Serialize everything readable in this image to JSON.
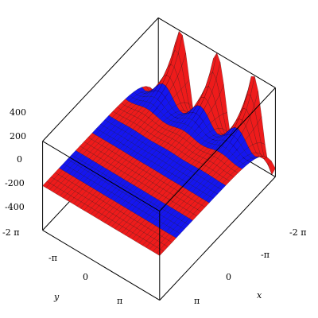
{
  "chart_data": {
    "type": "surface3d",
    "title": "",
    "xlabel": "x",
    "ylabel": "y",
    "zlabel": "",
    "x_ticks": [
      "-2 π",
      "-π",
      "0",
      "π"
    ],
    "y_ticks": [
      "-2 π",
      "-π",
      "0",
      "π"
    ],
    "z_ticks": [
      "400",
      "200",
      "0",
      "-200",
      "-400"
    ],
    "xlim": [
      -6.283,
      6.283
    ],
    "ylim": [
      -6.283,
      6.283
    ],
    "zlim": [
      -500,
      500
    ],
    "colors": {
      "band_a": "#ee1b1b",
      "band_b": "#1515f0",
      "mesh": "#000000",
      "box": "#000000"
    },
    "surface": {
      "description": "oscillating waves along y, decaying to a flat striped plane as x increases",
      "amplitude": 500,
      "frequency_y": 1.0,
      "decay_x": 0.9,
      "color_bands": 7
    }
  }
}
